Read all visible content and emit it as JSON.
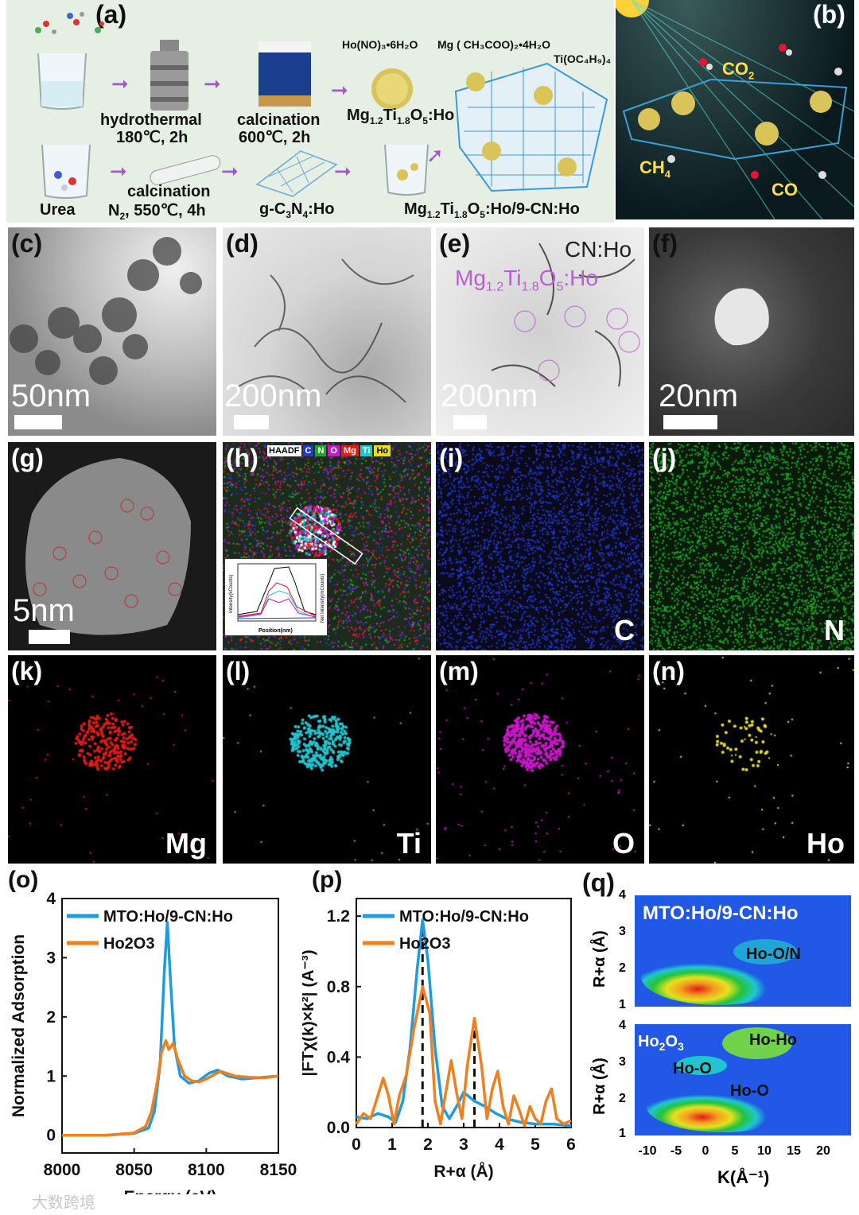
{
  "panels": {
    "a": {
      "label": "(a)",
      "reagents": [
        "Ho(NO)₃•6H₂O",
        "Mg ( CH₃COO)₂•4H₂O",
        "Ti(OC₄H₉)₄"
      ],
      "step_hydro": "hydrothermal",
      "step_hydro_cond": "180℃, 2h",
      "step_calc1": "calcination",
      "step_calc1_cond": "600℃, 2h",
      "product1": "Mg1.2Ti1.8O5:Ho",
      "urea": "Urea",
      "step_calc2": "calcination",
      "step_calc2_cond": "N2, 550℃, 4h",
      "product2": "g-C3N4:Ho",
      "product3": "Mg1.2Ti1.8O5:Ho/9-CN:Ho"
    },
    "b": {
      "label": "(b)",
      "co2": "CO2",
      "ch4": "CH4",
      "co": "CO"
    },
    "c": {
      "label": "(c)",
      "scale": "50nm"
    },
    "d": {
      "label": "(d)",
      "scale": "200nm"
    },
    "e": {
      "label": "(e)",
      "scale": "200nm",
      "cn": "CN:Ho",
      "mto": "Mg1.2Ti1.8O5:Ho"
    },
    "f": {
      "label": "(f)",
      "scale": "20nm"
    },
    "g": {
      "label": "(g)",
      "scale": "5nm"
    },
    "h": {
      "label": "(h)",
      "legend": [
        "HAADF",
        "C",
        "N",
        "O",
        "Mg",
        "Ti",
        "Ho"
      ],
      "inset_xlabel": "Position(nm)",
      "inset_ylabel": "Intensity(kCounts)",
      "inset_ylabel2": "Net Intensity(mCounts)"
    },
    "i": {
      "label": "(i)",
      "element": "C"
    },
    "j": {
      "label": "(j)",
      "element": "N"
    },
    "k": {
      "label": "(k)",
      "element": "Mg"
    },
    "l": {
      "label": "(l)",
      "element": "Ti"
    },
    "m": {
      "label": "(m)",
      "element": "O"
    },
    "n": {
      "label": "(n)",
      "element": "Ho"
    },
    "q": {
      "label": "(q)",
      "top_title": "MTO:Ho/9-CN:Ho",
      "top_peak": "Ho-O/N",
      "bot_title": "Ho2O3",
      "bot_peak1": "Ho-Ho",
      "bot_peak2": "Ho-O",
      "bot_peak3": "Ho-O",
      "ylabel": "R+α (Å)",
      "xlabel": "K(Å⁻¹)",
      "xticks": [
        "-10",
        "-5",
        "0",
        "5",
        "10",
        "15",
        "20"
      ],
      "yticks": [
        "1",
        "2",
        "3",
        "4"
      ]
    }
  },
  "colors": {
    "blue": "#1e9be3",
    "orange": "#f07f1e",
    "mapC": "#2238d6",
    "mapN": "#1ea82a",
    "mapMg": "#e11a1a",
    "mapTi": "#21c6cf",
    "mapO": "#c718c7",
    "mapHo": "#e6e01e"
  },
  "chart_data": [
    {
      "type": "line",
      "label": "(o)",
      "xlabel": "Energy (eV)",
      "ylabel": "Normalized Adsorption",
      "xlim": [
        8000,
        8150
      ],
      "ylim": [
        -0.3,
        4
      ],
      "xticks": [
        8000,
        8050,
        8100,
        8150
      ],
      "yticks": [
        0,
        1,
        2,
        3,
        4
      ],
      "series": [
        {
          "name": "MTO:Ho/9-CN:Ho",
          "color": "#1e9be3",
          "x": [
            8000,
            8030,
            8050,
            8060,
            8064,
            8068,
            8071,
            8073,
            8075,
            8078,
            8082,
            8088,
            8095,
            8102,
            8108,
            8115,
            8125,
            8135,
            8150
          ],
          "y": [
            0,
            0,
            0.03,
            0.12,
            0.4,
            1.2,
            2.8,
            3.6,
            2.7,
            1.5,
            1.0,
            0.88,
            0.92,
            1.05,
            1.1,
            1.0,
            0.95,
            0.97,
            1.0
          ]
        },
        {
          "name": "Ho2O3",
          "color": "#f07f1e",
          "x": [
            8000,
            8030,
            8050,
            8058,
            8062,
            8066,
            8069,
            8072,
            8074,
            8077,
            8080,
            8085,
            8090,
            8095,
            8100,
            8105,
            8110,
            8120,
            8130,
            8140,
            8150
          ],
          "y": [
            0,
            0,
            0.04,
            0.15,
            0.4,
            0.9,
            1.4,
            1.6,
            1.45,
            1.55,
            1.3,
            1.0,
            0.92,
            0.9,
            0.95,
            1.02,
            1.08,
            1.0,
            0.98,
            0.97,
            1.0
          ]
        }
      ]
    },
    {
      "type": "line",
      "label": "(p)",
      "xlabel": "R+α (Å)",
      "ylabel": "|FTχ(k)×k²| (Å⁻³)",
      "xlim": [
        0,
        6
      ],
      "ylim": [
        0,
        1.3
      ],
      "xticks": [
        0,
        1,
        2,
        3,
        4,
        5,
        6
      ],
      "yticks": [
        0.0,
        0.4,
        0.8,
        1.2
      ],
      "markers": [
        1.85,
        3.3
      ],
      "series": [
        {
          "name": "MTO:Ho/9-CN:Ho",
          "color": "#1e9be3",
          "x": [
            0,
            0.3,
            0.6,
            0.9,
            1.1,
            1.3,
            1.5,
            1.7,
            1.85,
            2.0,
            2.2,
            2.4,
            2.6,
            2.8,
            3.0,
            3.3,
            3.6,
            3.9,
            4.2,
            4.6,
            5.0,
            5.5,
            6.0
          ],
          "y": [
            0.06,
            0.05,
            0.08,
            0.06,
            0.03,
            0.15,
            0.45,
            0.9,
            1.18,
            0.95,
            0.45,
            0.12,
            0.05,
            0.12,
            0.2,
            0.15,
            0.12,
            0.08,
            0.05,
            0.03,
            0.02,
            0.02,
            0.01
          ]
        },
        {
          "name": "Ho2O3",
          "color": "#f07f1e",
          "x": [
            0,
            0.2,
            0.4,
            0.6,
            0.75,
            0.9,
            1.05,
            1.2,
            1.4,
            1.6,
            1.85,
            2.05,
            2.2,
            2.35,
            2.5,
            2.65,
            2.8,
            2.95,
            3.1,
            3.3,
            3.5,
            3.65,
            3.8,
            3.95,
            4.1,
            4.25,
            4.4,
            4.55,
            4.7,
            4.85,
            5.0,
            5.15,
            5.3,
            5.45,
            5.6,
            5.8,
            6.0
          ],
          "y": [
            0.02,
            0.08,
            0.05,
            0.18,
            0.28,
            0.18,
            0.02,
            0.18,
            0.3,
            0.55,
            0.8,
            0.65,
            0.15,
            0.02,
            0.2,
            0.38,
            0.2,
            0.05,
            0.35,
            0.62,
            0.35,
            0.05,
            0.22,
            0.32,
            0.12,
            0.02,
            0.18,
            0.1,
            0.01,
            0.12,
            0.05,
            0.02,
            0.15,
            0.22,
            0.05,
            0.02,
            0.04
          ]
        }
      ]
    }
  ],
  "watermark": "大数跨境"
}
